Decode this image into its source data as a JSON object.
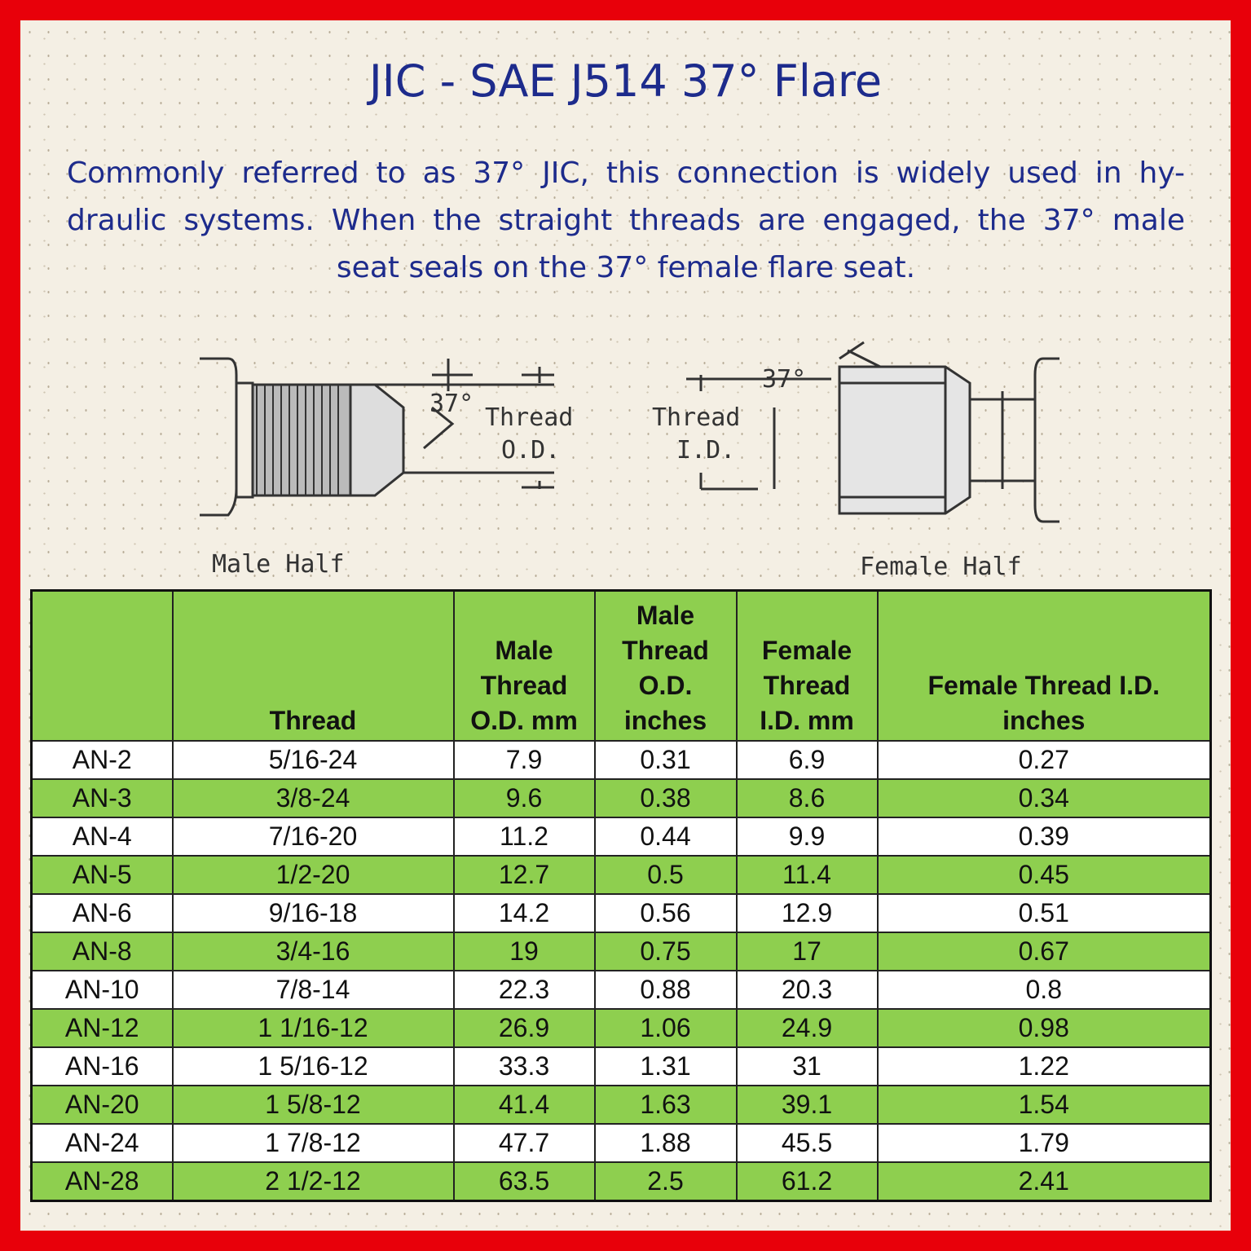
{
  "title": "JIC - SAE J514 37° Flare",
  "description": [
    "Commonly referred to as 37° JIC, this connection is widely used in hy-",
    "draulic systems. When the straight threads are engaged, the 37° male",
    "seat seals on the 37° female flare seat."
  ],
  "diagram": {
    "male_angle": "37°",
    "male_dim": [
      "Thread",
      "O.D."
    ],
    "female_angle": "37°",
    "female_dim": [
      "Thread",
      "I.D."
    ],
    "male_caption": "Male Half",
    "female_caption": "Female Half"
  },
  "colors": {
    "border": "#e8000a",
    "title": "#1d2b8c",
    "table_green": "#8ecf4f"
  },
  "table": {
    "headers": [
      "",
      "Thread",
      "Male Thread O.D. mm",
      "Male Thread O.D. inches",
      "Female Thread I.D. mm",
      "Female Thread I.D. inches"
    ],
    "rows": [
      [
        "AN-2",
        "5/16-24",
        "7.9",
        "0.31",
        "6.9",
        "0.27"
      ],
      [
        "AN-3",
        "3/8-24",
        "9.6",
        "0.38",
        "8.6",
        "0.34"
      ],
      [
        "AN-4",
        "7/16-20",
        "11.2",
        "0.44",
        "9.9",
        "0.39"
      ],
      [
        "AN-5",
        "1/2-20",
        "12.7",
        "0.5",
        "11.4",
        "0.45"
      ],
      [
        "AN-6",
        "9/16-18",
        "14.2",
        "0.56",
        "12.9",
        "0.51"
      ],
      [
        "AN-8",
        "3/4-16",
        "19",
        "0.75",
        "17",
        "0.67"
      ],
      [
        "AN-10",
        "7/8-14",
        "22.3",
        "0.88",
        "20.3",
        "0.8"
      ],
      [
        "AN-12",
        "1 1/16-12",
        "26.9",
        "1.06",
        "24.9",
        "0.98"
      ],
      [
        "AN-16",
        "1 5/16-12",
        "33.3",
        "1.31",
        "31",
        "1.22"
      ],
      [
        "AN-20",
        "1 5/8-12",
        "41.4",
        "1.63",
        "39.1",
        "1.54"
      ],
      [
        "AN-24",
        "1 7/8-12",
        "47.7",
        "1.88",
        "45.5",
        "1.79"
      ],
      [
        "AN-28",
        "2 1/2-12",
        "63.5",
        "2.5",
        "61.2",
        "2.41"
      ]
    ]
  }
}
